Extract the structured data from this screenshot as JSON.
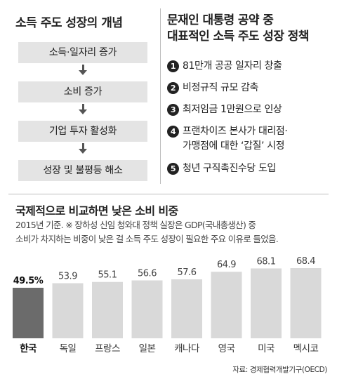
{
  "flow": {
    "title": "소득 주도 성장의 개념",
    "steps": [
      "소득·일자리 증가",
      "소비 증가",
      "기업 투자 활성화",
      "성장 및 불평등 해소"
    ]
  },
  "policy": {
    "title_lines": [
      "문재인 대통령 공약 중",
      "대표적인 소득 주도 성장 정책"
    ],
    "items": [
      {
        "num": "1",
        "text": "81만개 공공 일자리 창출"
      },
      {
        "num": "2",
        "text": "비정규직 규모 감축"
      },
      {
        "num": "3",
        "text": "최저임금 1만원으로 인상"
      },
      {
        "num": "4",
        "text": "프랜차이즈 본사가 대리점·\n가맹점에 대한 ‘갑질’ 시정"
      },
      {
        "num": "5",
        "text": "청년 구직촉진수당 도입"
      }
    ]
  },
  "chart_data": {
    "type": "bar",
    "title": "국제적으로 비교하면 낮은 소비 비중",
    "note_lines": [
      "2015년 기준. ※ 장하성 신임 청와대 정책 실장은 GDP(국내총생산) 중",
      "소비가 차지하는 비중이 낮은 걸 소득 주도 성장이 필요한 주요 이유로 들었음."
    ],
    "categories": [
      "한국",
      "독일",
      "프랑스",
      "일본",
      "캐나다",
      "영국",
      "미국",
      "멕시코"
    ],
    "values": [
      49.5,
      53.9,
      55.1,
      56.6,
      57.6,
      64.9,
      68.1,
      68.4
    ],
    "value_labels": [
      "49.5%",
      "53.9",
      "55.1",
      "56.6",
      "57.6",
      "64.9",
      "68.1",
      "68.4"
    ],
    "highlight_index": 0,
    "source": "자료: 경제협력개발기구(OECD)",
    "colors": {
      "highlight": "#6b6b6b",
      "bar": "#d9d9d9",
      "badge": "#222222"
    }
  }
}
